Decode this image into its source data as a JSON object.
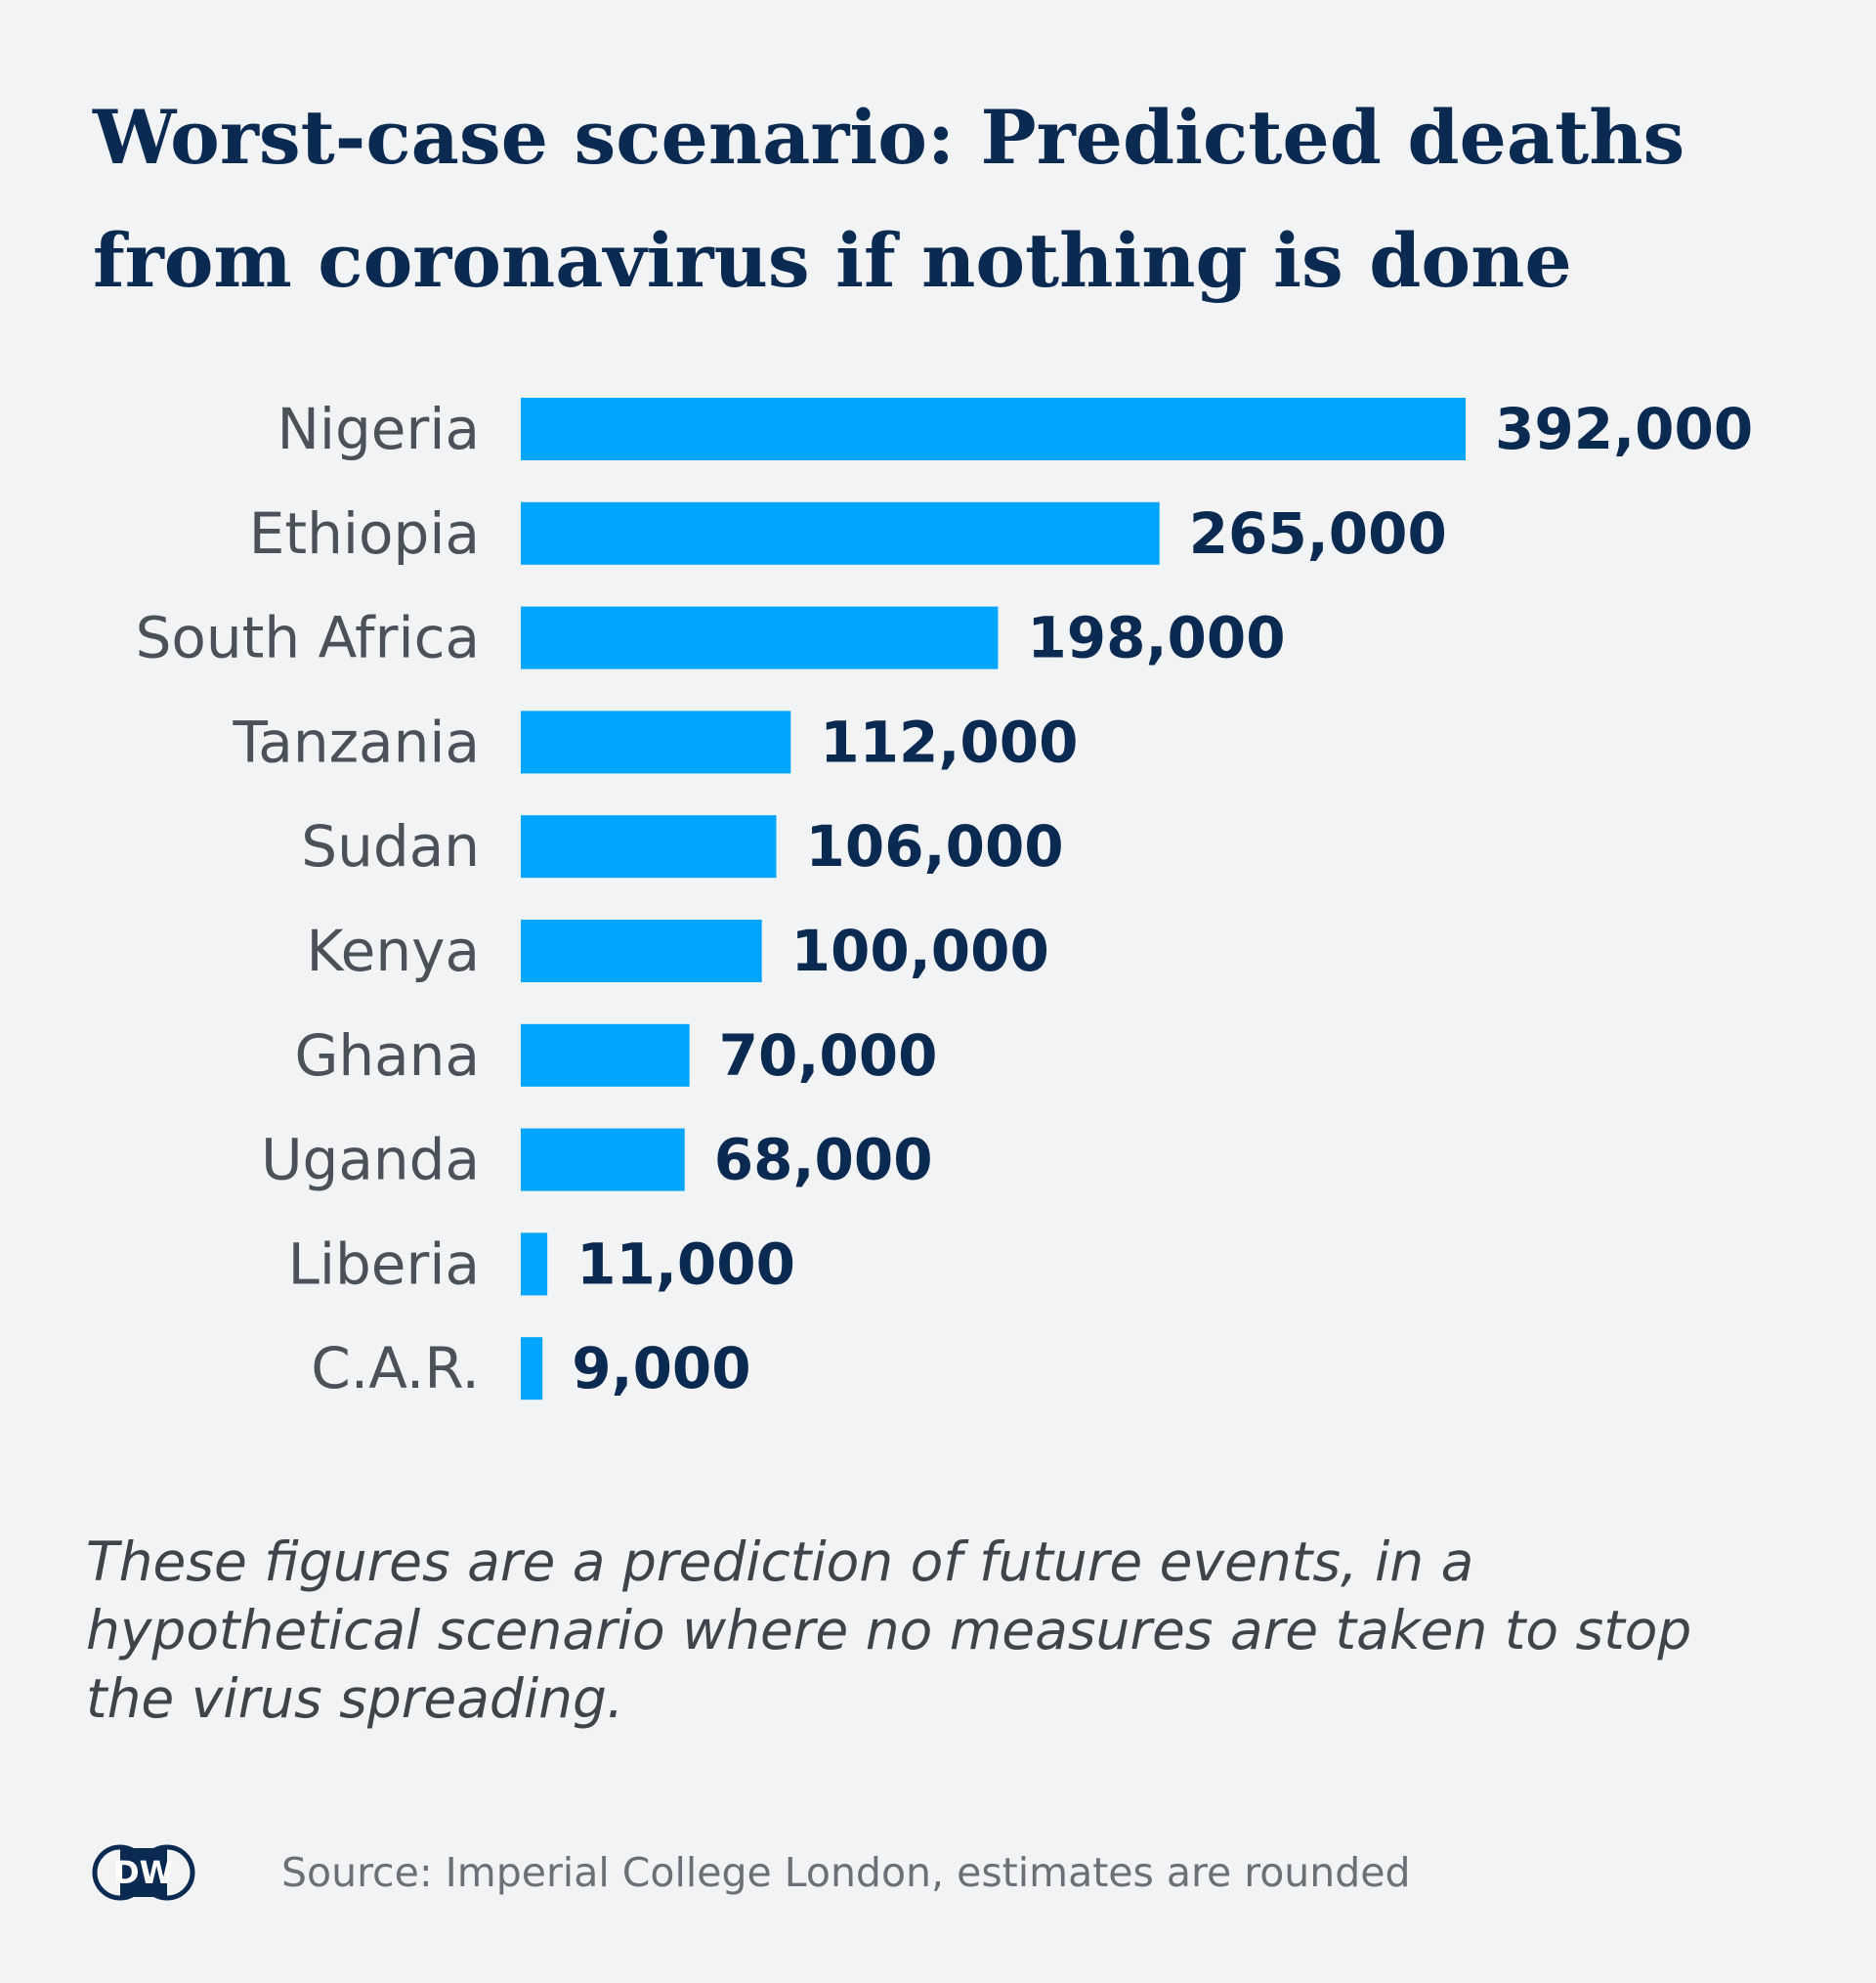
{
  "title": "Worst-case scenario: Predicted deaths from coronavirus if nothing is done",
  "chart_data": {
    "type": "bar",
    "orientation": "horizontal",
    "title": "Worst-case scenario: Predicted deaths from coronavirus if nothing is done",
    "categories": [
      "Nigeria",
      "Ethiopia",
      "South Africa",
      "Tanzania",
      "Sudan",
      "Kenya",
      "Ghana",
      "Uganda",
      "Liberia",
      "C.A.R."
    ],
    "values": [
      392000,
      265000,
      198000,
      112000,
      106000,
      100000,
      70000,
      68000,
      11000,
      9000
    ],
    "value_labels": [
      "392,000",
      "265,000",
      "198,000",
      "112,000",
      "106,000",
      "100,000",
      "70,000",
      "68,000",
      "11,000",
      "9,000"
    ],
    "xlim": [
      0,
      392000
    ],
    "grid": false,
    "legend": "none",
    "bar_color": "#00a5ff"
  },
  "note": "These figures are a prediction of future events, in a hypothetical scenario where no measures are taken to stop the virus spreading.",
  "source": "Source: Imperial College London, estimates are rounded",
  "logo": {
    "icon": "dw-logo-icon",
    "text": "DW"
  },
  "colors": {
    "background": "#f2f3f5",
    "title": "#0b2a52",
    "bar": "#00a5ff",
    "category_label": "#4b5158",
    "value_label": "#0b2a52",
    "note": "#3f444a",
    "source": "#6b7077"
  }
}
